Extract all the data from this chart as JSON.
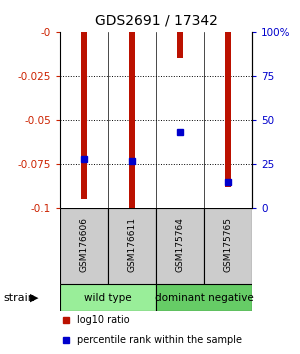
{
  "title": "GDS2691 / 17342",
  "samples": [
    "GSM176606",
    "GSM176611",
    "GSM175764",
    "GSM175765"
  ],
  "log10_ratio": [
    -0.095,
    -0.1,
    -0.015,
    -0.088
  ],
  "percentile_rank": [
    28,
    27,
    43,
    15
  ],
  "ylim": [
    -0.1,
    0.0
  ],
  "y_ticks": [
    0.0,
    -0.025,
    -0.05,
    -0.075,
    -0.1
  ],
  "y_tick_labels": [
    "-0",
    "-0.025",
    "-0.05",
    "-0.075",
    "-0.1"
  ],
  "right_y_ticks": [
    0,
    25,
    50,
    75,
    100
  ],
  "right_y_tick_labels": [
    "0",
    "25",
    "50",
    "75",
    "100%"
  ],
  "groups": [
    {
      "name": "wild type",
      "indices": [
        0,
        1
      ],
      "color": "#99EE99"
    },
    {
      "name": "dominant negative",
      "indices": [
        2,
        3
      ],
      "color": "#66CC66"
    }
  ],
  "bar_color": "#BB1100",
  "marker_color": "#0000CC",
  "bar_width": 0.12,
  "legend_items": [
    {
      "label": "log10 ratio",
      "color": "#BB1100"
    },
    {
      "label": "percentile rank within the sample",
      "color": "#0000CC"
    }
  ],
  "group_label": "strain",
  "label_color_left": "#CC2200",
  "label_color_right": "#0000CC",
  "sample_box_color": "#CCCCCC",
  "bg_color": "#ffffff"
}
